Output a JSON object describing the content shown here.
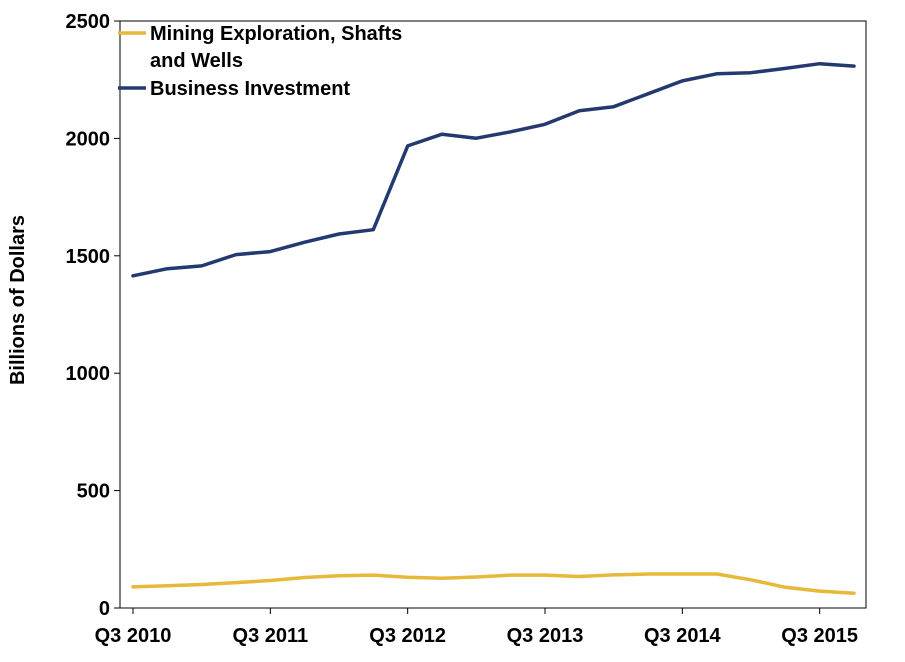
{
  "chart_data": {
    "type": "line",
    "title": "",
    "xlabel": "",
    "ylabel": "Billions of Dollars",
    "ylim": [
      0,
      2500
    ],
    "yticks": [
      0,
      500,
      1000,
      1500,
      2000,
      2500
    ],
    "grid": false,
    "legend_position": "top-left",
    "x": [
      "Q3 2010",
      "Q4 2010",
      "Q1 2011",
      "Q2 2011",
      "Q3 2011",
      "Q4 2011",
      "Q1 2012",
      "Q2 2012",
      "Q3 2012",
      "Q4 2012",
      "Q1 2013",
      "Q2 2013",
      "Q3 2013",
      "Q4 2013",
      "Q1 2014",
      "Q2 2014",
      "Q3 2014",
      "Q4 2014",
      "Q1 2015",
      "Q2 2015",
      "Q3 2015",
      "Q4 2015"
    ],
    "xtick_labels": [
      "Q3 2010",
      "Q3 2011",
      "Q3 2012",
      "Q3 2013",
      "Q3 2014",
      "Q3 2015"
    ],
    "series": [
      {
        "name": "Mining Exploration, Shafts and Wells",
        "legend_lines": [
          "Mining Exploration, Shafts",
          "and Wells"
        ],
        "color": "#E8B83A",
        "values": [
          90,
          95,
          100,
          108,
          117,
          130,
          137,
          140,
          131,
          127,
          132,
          140,
          140,
          134,
          141,
          145,
          145,
          145,
          120,
          88,
          72,
          63
        ]
      },
      {
        "name": "Business Investment",
        "legend_lines": [
          "Business Investment"
        ],
        "color": "#24396F",
        "values": [
          1415,
          1445,
          1457,
          1505,
          1518,
          1558,
          1593,
          1611,
          1968,
          2018,
          2001,
          2028,
          2060,
          2118,
          2135,
          2190,
          2245,
          2275,
          2280,
          2298,
          2318,
          2308
        ]
      }
    ]
  }
}
